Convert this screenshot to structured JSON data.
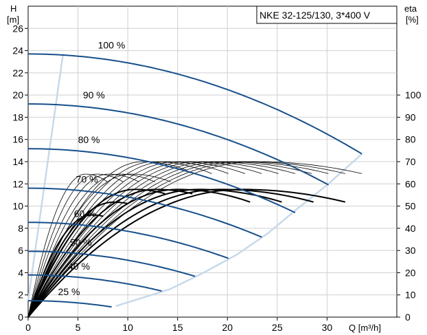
{
  "chart_data": {
    "type": "line",
    "title": "NKE 32-125/130, 3*400 V",
    "x_axis": {
      "label": "Q [m³/h]",
      "range": [
        0,
        37
      ],
      "ticks": [
        0,
        5,
        10,
        15,
        20,
        25,
        30
      ]
    },
    "y_axis_left": {
      "label_line1": "H",
      "label_line2": "[m]",
      "range": [
        0,
        28
      ],
      "ticks": [
        0,
        2,
        4,
        6,
        8,
        10,
        12,
        14,
        16,
        18,
        20,
        22,
        24,
        26
      ]
    },
    "y_axis_right": {
      "label_line1": "eta",
      "label_line2": "[%]",
      "range": [
        0,
        140
      ],
      "ticks": [
        0,
        10,
        20,
        30,
        40,
        50,
        60,
        70,
        80,
        90,
        100
      ]
    },
    "grid": true,
    "head_curves": [
      {
        "name": "100 %",
        "speed": 1.0
      },
      {
        "name": "90 %",
        "speed": 0.9
      },
      {
        "name": "80 %",
        "speed": 0.8
      },
      {
        "name": "70 %",
        "speed": 0.7
      },
      {
        "name": "60 %",
        "speed": 0.6
      },
      {
        "name": "50 %",
        "speed": 0.5
      },
      {
        "name": "40 %",
        "speed": 0.4
      },
      {
        "name": "25 %",
        "speed": 0.25
      }
    ],
    "head_model": {
      "h0": 23.7,
      "q_max": 33.5,
      "h_end": 14.7,
      "q_bep_100": 23.0
    },
    "efficiency_model": {
      "eta_max": 70,
      "eta_end": 64
    },
    "operating_limits": {
      "min_flow_line": [
        [
          0,
          1.5
        ],
        [
          3.5,
          23.7
        ]
      ],
      "max_flow_line": [
        [
          8.8,
          1.0
        ],
        [
          14.2,
          2.5
        ],
        [
          17.4,
          3.9
        ],
        [
          20.9,
          5.6
        ],
        [
          24.0,
          7.5
        ],
        [
          26.8,
          9.6
        ],
        [
          30.0,
          11.9
        ],
        [
          33.5,
          14.7
        ]
      ]
    },
    "colors": {
      "head": "#174f8a",
      "limit": "#c7d9ea",
      "eff_thin": "#000000",
      "eff_bold": "#000000",
      "grid": "#cfcfcf"
    }
  }
}
